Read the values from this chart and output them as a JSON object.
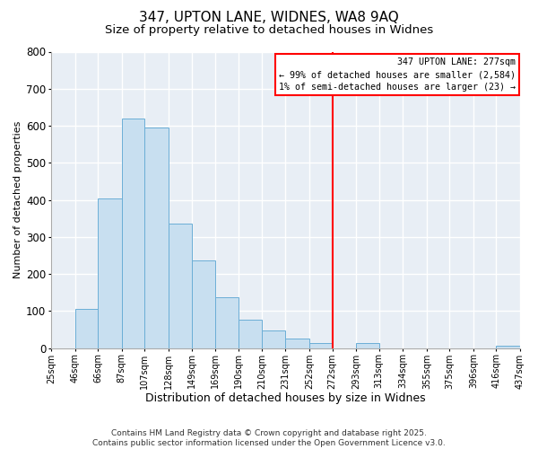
{
  "title": "347, UPTON LANE, WIDNES, WA8 9AQ",
  "subtitle": "Size of property relative to detached houses in Widnes",
  "xlabel": "Distribution of detached houses by size in Widnes",
  "ylabel": "Number of detached properties",
  "bin_edges": [
    25,
    46,
    66,
    87,
    107,
    128,
    149,
    169,
    190,
    210,
    231,
    252,
    272,
    293,
    313,
    334,
    355,
    375,
    396,
    416,
    437
  ],
  "bar_heights": [
    0,
    107,
    403,
    619,
    596,
    337,
    237,
    137,
    78,
    48,
    25,
    15,
    0,
    15,
    0,
    0,
    0,
    0,
    0,
    7
  ],
  "bar_color": "#c8dff0",
  "bar_edge_color": "#6baed6",
  "vline_x": 272,
  "vline_color": "red",
  "ylim": [
    0,
    800
  ],
  "yticks": [
    0,
    100,
    200,
    300,
    400,
    500,
    600,
    700,
    800
  ],
  "legend_title": "347 UPTON LANE: 277sqm",
  "legend_line1": "← 99% of detached houses are smaller (2,584)",
  "legend_line2": "1% of semi-detached houses are larger (23) →",
  "footer_line1": "Contains HM Land Registry data © Crown copyright and database right 2025.",
  "footer_line2": "Contains public sector information licensed under the Open Government Licence v3.0.",
  "bg_color": "#ffffff",
  "plot_bg_color": "#e8eef5",
  "grid_color": "#ffffff",
  "title_fontsize": 11,
  "subtitle_fontsize": 9.5,
  "tick_label_fontsize": 7,
  "xlabel_fontsize": 9,
  "ylabel_fontsize": 8,
  "footer_fontsize": 6.5
}
